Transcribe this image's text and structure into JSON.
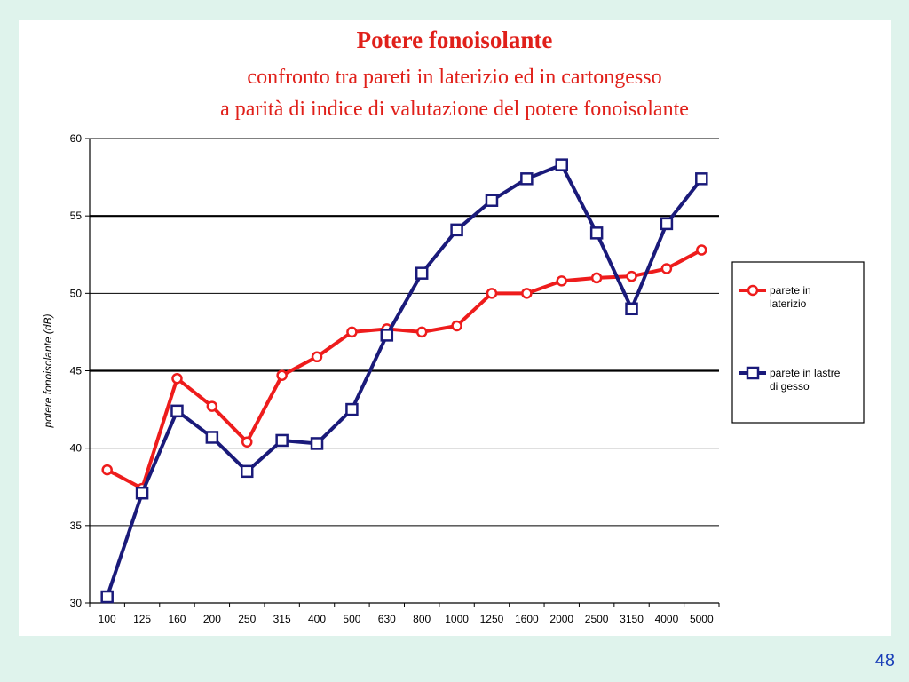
{
  "chart_data": {
    "type": "line",
    "title": "Potere fonoisolante",
    "subtitle_lines": [
      "confronto tra pareti in laterizio ed in cartongesso",
      "a parità di indice di valutazione del potere fonoisolante"
    ],
    "xlabel": "",
    "ylabel": "potere fonoisolante (dB)",
    "ylim": [
      30,
      60
    ],
    "yticks": [
      30,
      35,
      40,
      45,
      50,
      55,
      60
    ],
    "bold_gridlines": [
      45,
      55
    ],
    "grid": true,
    "legend_position": "right",
    "categories": [
      "100",
      "125",
      "160",
      "200",
      "250",
      "315",
      "400",
      "500",
      "630",
      "800",
      "1000",
      "1250",
      "1600",
      "2000",
      "2500",
      "3150",
      "4000",
      "5000"
    ],
    "series": [
      {
        "name": "parete in laterizio",
        "legend_lines": [
          "parete in",
          "laterizio"
        ],
        "color": "#ee1c1c",
        "marker": "circle",
        "values": [
          38.6,
          37.4,
          44.5,
          42.7,
          40.4,
          44.7,
          45.9,
          47.5,
          47.7,
          47.5,
          47.9,
          50.0,
          50.0,
          50.8,
          51.0,
          51.1,
          51.6,
          52.8
        ]
      },
      {
        "name": "parete in lastre di gesso",
        "legend_lines": [
          "parete in lastre",
          "di gesso"
        ],
        "color": "#1a1a7a",
        "marker": "square",
        "values": [
          30.4,
          37.1,
          42.4,
          40.7,
          38.5,
          40.5,
          40.3,
          42.5,
          47.3,
          51.3,
          54.1,
          56.0,
          57.4,
          58.3,
          53.9,
          49.0,
          54.5,
          57.4
        ]
      }
    ]
  },
  "slide": {
    "page_number": "48"
  }
}
